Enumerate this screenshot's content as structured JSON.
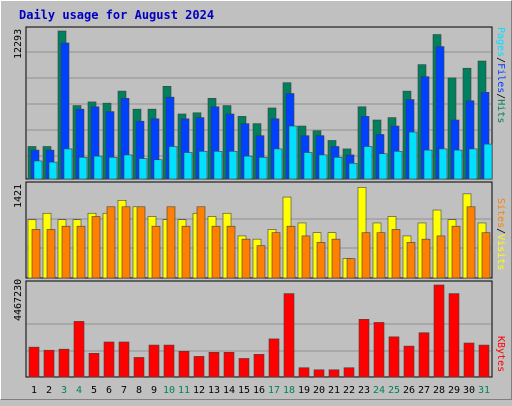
{
  "title": "Daily usage for August 2024",
  "colors": {
    "hits": "#00805c",
    "files": "#0040ff",
    "pages": "#00e0ff",
    "visits": "#ffff00",
    "sites": "#ff8000",
    "kbytes": "#ff0000",
    "weekend_day": "#00805c",
    "title": "#0000c0"
  },
  "right_labels": {
    "top": {
      "pages": "Pages",
      "files": "Files",
      "hits": "Hits",
      "sep": "/"
    },
    "middle": {
      "sites": "Sites",
      "visits": "Visits",
      "sep": "/"
    },
    "bottom": {
      "kbytes": "KBytes"
    }
  },
  "chart_data": [
    {
      "type": "bar",
      "panel": "hits-files-pages",
      "ylabel": "12293",
      "ylim": [
        0,
        12293
      ],
      "categories": [
        "1",
        "2",
        "3",
        "4",
        "5",
        "6",
        "7",
        "8",
        "9",
        "10",
        "11",
        "12",
        "13",
        "14",
        "15",
        "16",
        "17",
        "18",
        "19",
        "20",
        "21",
        "22",
        "23",
        "24",
        "25",
        "26",
        "27",
        "28",
        "29",
        "30",
        "31"
      ],
      "weekend_days": [
        "3",
        "4",
        "10",
        "11",
        "17",
        "18",
        "24",
        "25",
        "31"
      ],
      "series": [
        {
          "name": "Hits",
          "values": [
            2700,
            2700,
            12293,
            6100,
            6400,
            6300,
            7300,
            5800,
            5800,
            7700,
            5400,
            5500,
            6700,
            6100,
            5200,
            4600,
            5900,
            8000,
            4400,
            4000,
            3200,
            2500,
            6000,
            4900,
            5100,
            7300,
            9500,
            12000,
            8400,
            9200,
            9800
          ]
        },
        {
          "name": "Files",
          "values": [
            2400,
            2400,
            11300,
            5800,
            6000,
            5600,
            6700,
            4800,
            5000,
            6800,
            5000,
            5100,
            6000,
            5400,
            4600,
            3600,
            5000,
            7100,
            3600,
            3600,
            2700,
            2000,
            5200,
            3700,
            4400,
            6600,
            8500,
            11000,
            4900,
            6500,
            7200
          ]
        },
        {
          "name": "Pages",
          "values": [
            1500,
            1400,
            2500,
            1800,
            1900,
            1800,
            2000,
            1700,
            1600,
            2700,
            2200,
            2300,
            2300,
            2300,
            1900,
            1800,
            2500,
            4400,
            2200,
            2000,
            1800,
            1300,
            2700,
            2100,
            2300,
            3900,
            2400,
            2500,
            2400,
            2500,
            2900
          ]
        }
      ]
    },
    {
      "type": "bar",
      "panel": "visits-sites",
      "ylabel": "1421",
      "ylim": [
        0,
        1421
      ],
      "categories": [
        "1",
        "2",
        "3",
        "4",
        "5",
        "6",
        "7",
        "8",
        "9",
        "10",
        "11",
        "12",
        "13",
        "14",
        "15",
        "16",
        "17",
        "18",
        "19",
        "20",
        "21",
        "22",
        "23",
        "24",
        "25",
        "26",
        "27",
        "28",
        "29",
        "30",
        "31"
      ],
      "series": [
        {
          "name": "Visits",
          "values": [
            900,
            1000,
            900,
            900,
            1000,
            1000,
            1200,
            1100,
            950,
            900,
            900,
            1000,
            950,
            1000,
            650,
            600,
            750,
            1250,
            850,
            700,
            700,
            300,
            1400,
            850,
            950,
            650,
            850,
            1050,
            900,
            1300,
            850
          ]
        },
        {
          "name": "Sites",
          "values": [
            750,
            750,
            800,
            800,
            950,
            1100,
            1100,
            1100,
            800,
            1100,
            800,
            1100,
            800,
            800,
            600,
            500,
            700,
            800,
            650,
            550,
            600,
            300,
            700,
            700,
            750,
            550,
            600,
            650,
            800,
            1100,
            700
          ]
        }
      ]
    },
    {
      "type": "bar",
      "panel": "kbytes",
      "ylabel": "4467230",
      "ylim": [
        0,
        4467230
      ],
      "categories": [
        "1",
        "2",
        "3",
        "4",
        "5",
        "6",
        "7",
        "8",
        "9",
        "10",
        "11",
        "12",
        "13",
        "14",
        "15",
        "16",
        "17",
        "18",
        "19",
        "20",
        "21",
        "22",
        "23",
        "24",
        "25",
        "26",
        "27",
        "28",
        "29",
        "30",
        "31"
      ],
      "series": [
        {
          "name": "KBytes",
          "values": [
            1450000,
            1300000,
            1350000,
            2700000,
            1150000,
            1700000,
            1700000,
            950000,
            1550000,
            1550000,
            1250000,
            1000000,
            1200000,
            1200000,
            900000,
            1100000,
            1850000,
            4050000,
            450000,
            350000,
            350000,
            450000,
            2800000,
            2650000,
            1950000,
            1500000,
            2150000,
            4467230,
            4050000,
            1650000,
            1550000
          ]
        }
      ]
    }
  ]
}
